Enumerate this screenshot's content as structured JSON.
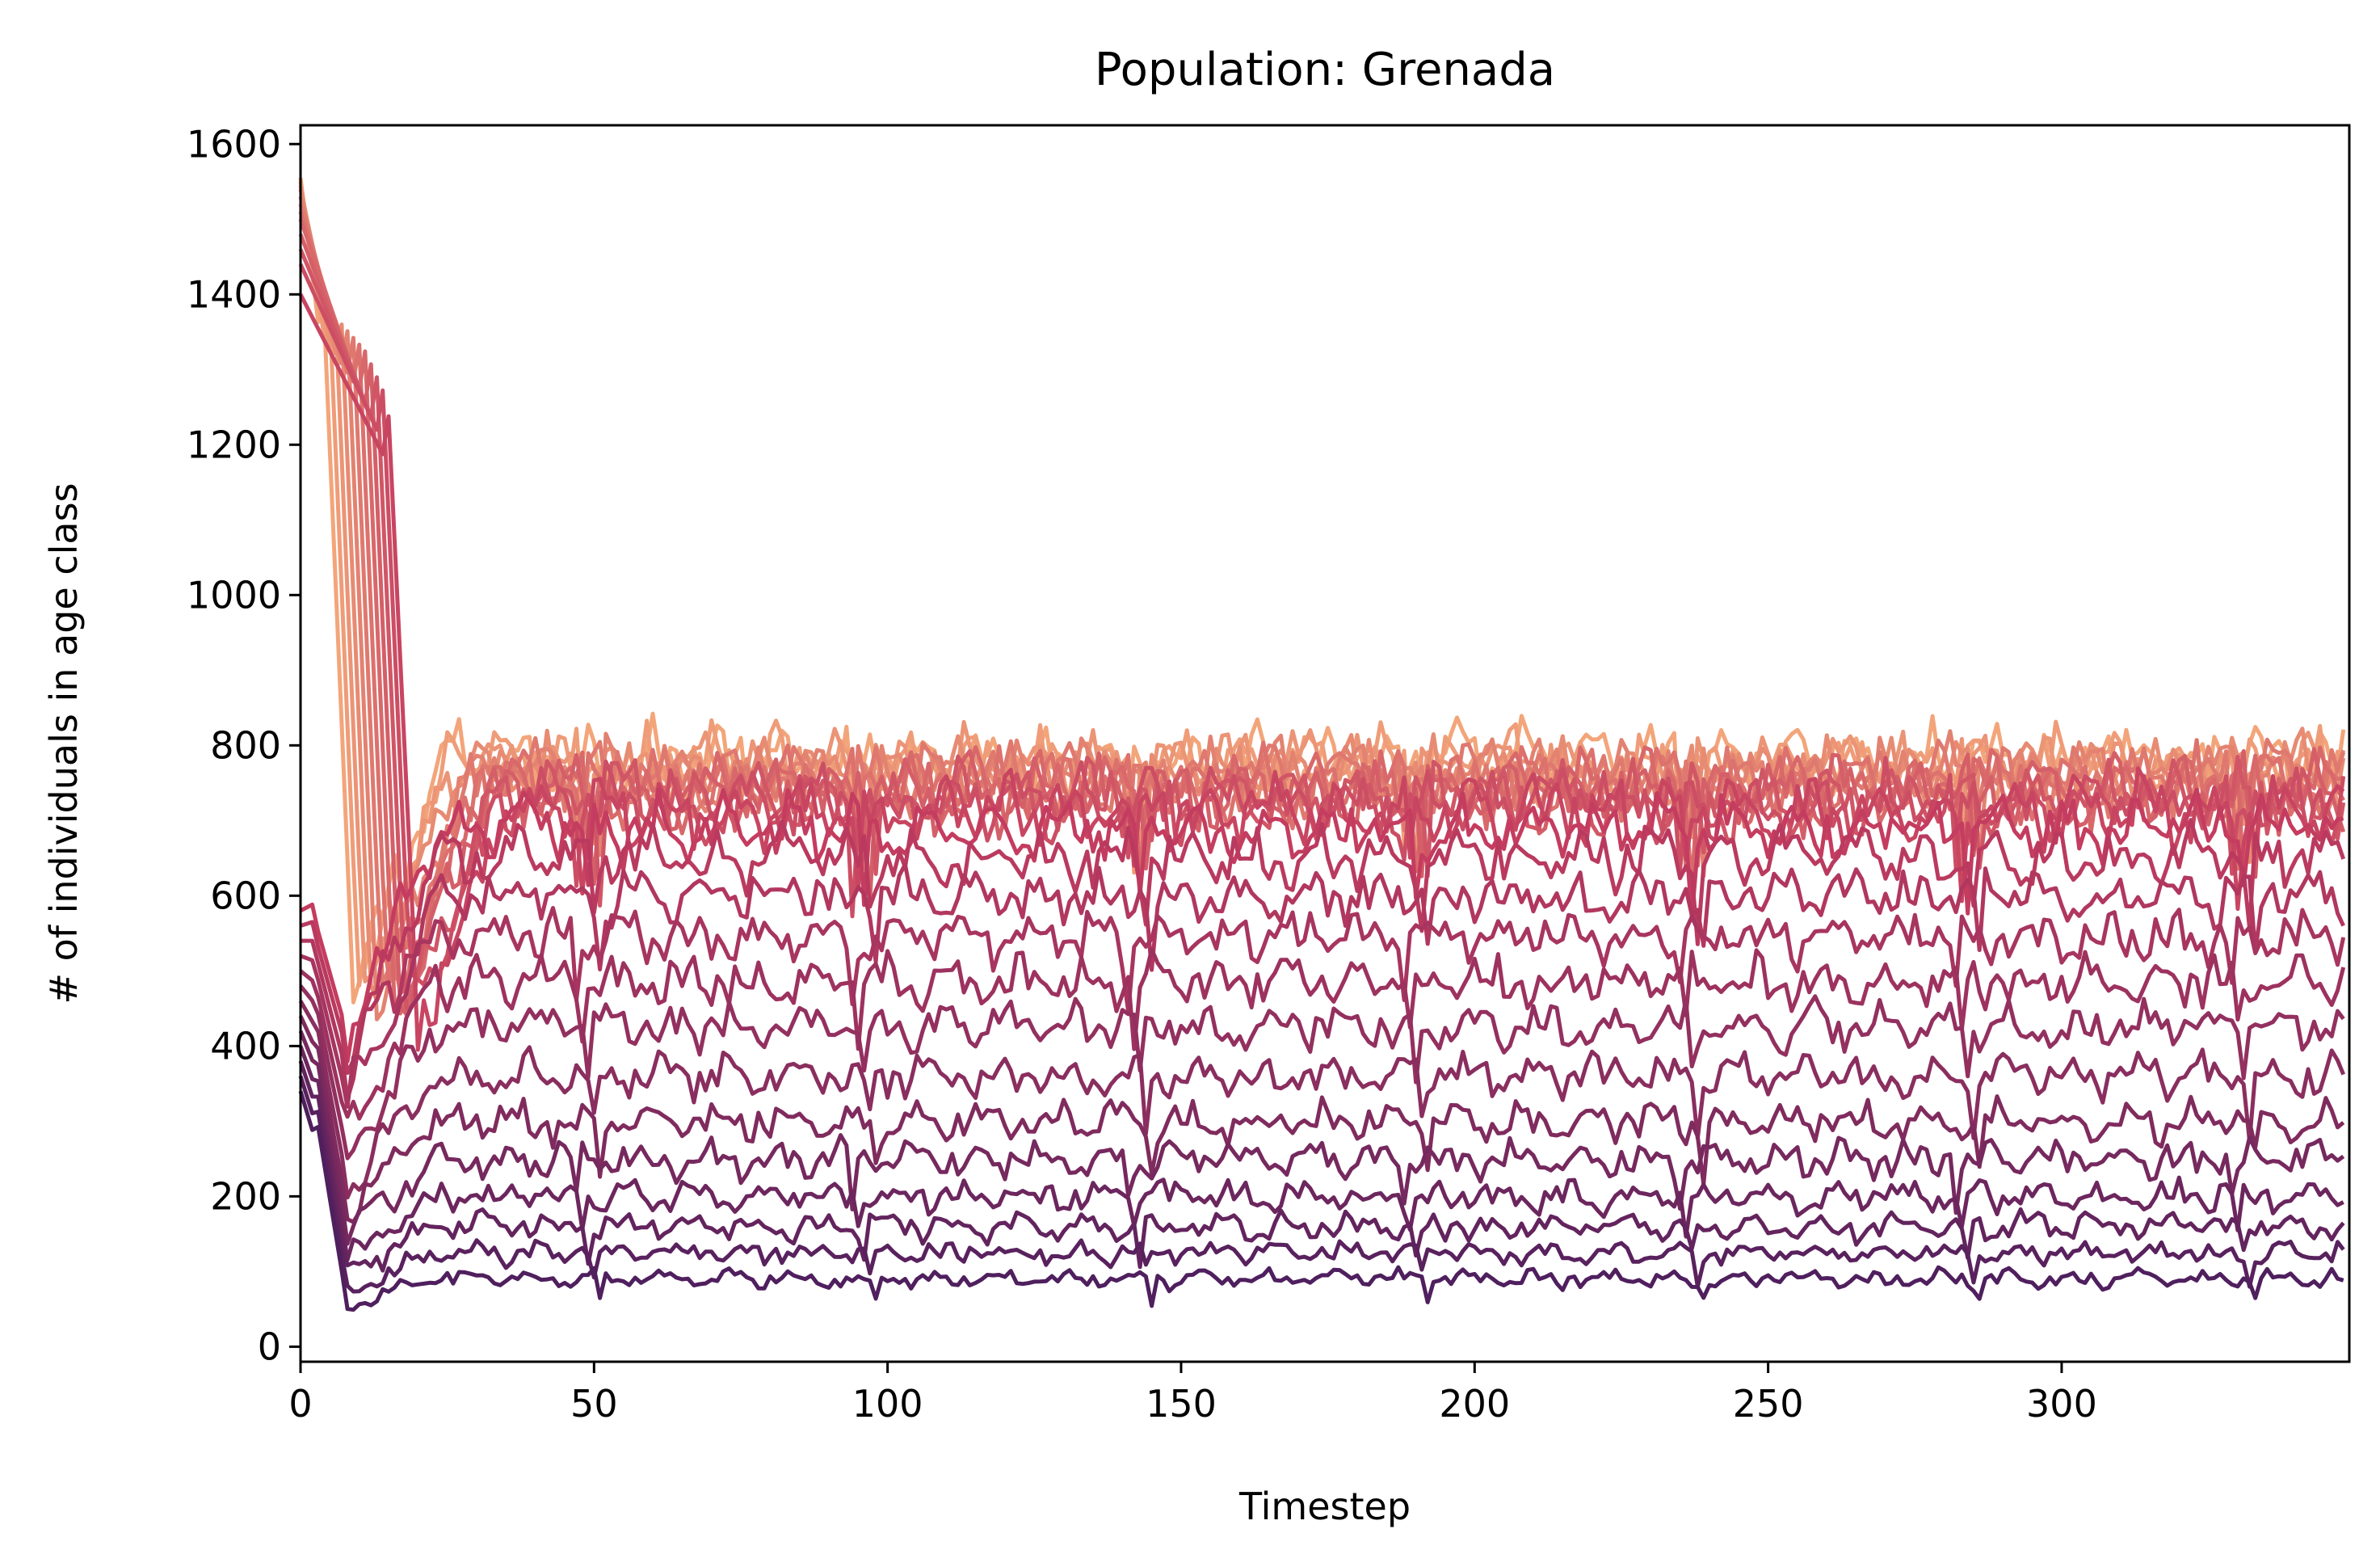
{
  "chart_data": {
    "type": "line",
    "title": "Population: Grenada",
    "xlabel": "Timestep",
    "ylabel": "# of individuals in age class",
    "xlim": [
      0,
      349
    ],
    "ylim": [
      -20,
      1625
    ],
    "xticks": [
      0,
      50,
      100,
      150,
      200,
      250,
      300
    ],
    "yticks": [
      0,
      200,
      400,
      600,
      800,
      1000,
      1200,
      1400,
      1600
    ],
    "grid": false,
    "legend": "none",
    "n_timesteps": 349,
    "colormap_end_colors": [
      "#f3a57a",
      "#4f1f5e"
    ],
    "series_profiles": {
      "description_of_values": "each series: [initial value at t=0, equilibrium mean level, amplitude of fluctuation, timestep of drop]",
      "values": [
        [
          1555,
          780,
          45,
          3
        ],
        [
          1550,
          775,
          45,
          4
        ],
        [
          1545,
          770,
          45,
          5
        ],
        [
          1540,
          765,
          45,
          6
        ],
        [
          1530,
          760,
          45,
          7
        ],
        [
          1520,
          755,
          45,
          8
        ],
        [
          1510,
          748,
          45,
          9
        ],
        [
          1500,
          742,
          45,
          10
        ],
        [
          1480,
          736,
          45,
          11
        ],
        [
          1460,
          730,
          45,
          12
        ],
        [
          1440,
          722,
          45,
          13
        ],
        [
          1400,
          712,
          45,
          14
        ],
        [
          580,
          690,
          40,
          2
        ],
        [
          560,
          650,
          38,
          2
        ],
        [
          540,
          600,
          36,
          2
        ],
        [
          520,
          545,
          34,
          2
        ],
        [
          500,
          485,
          32,
          2
        ],
        [
          480,
          425,
          30,
          2
        ],
        [
          460,
          360,
          28,
          2
        ],
        [
          440,
          300,
          26,
          2
        ],
        [
          420,
          250,
          24,
          2
        ],
        [
          400,
          200,
          20,
          2
        ],
        [
          380,
          160,
          18,
          2
        ],
        [
          360,
          125,
          15,
          2
        ],
        [
          340,
          90,
          12,
          2
        ]
      ]
    }
  }
}
